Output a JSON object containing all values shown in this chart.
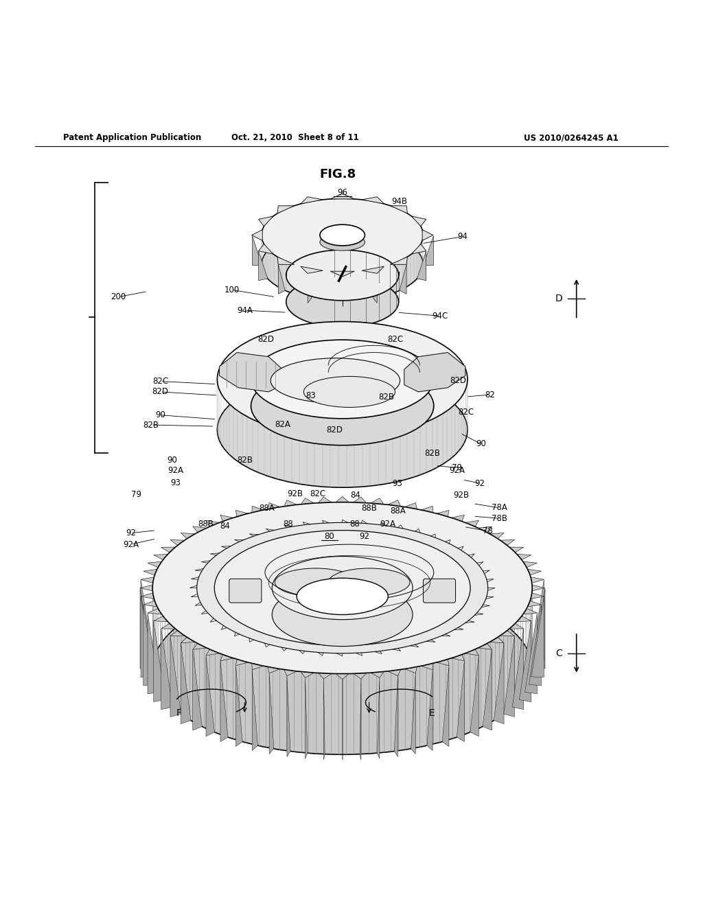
{
  "header_left": "Patent Application Publication",
  "header_mid": "Oct. 21, 2010  Sheet 8 of 11",
  "header_right": "US 2010/0264245 A1",
  "bg_color": "#ffffff",
  "fig_label": "FIG.8"
}
